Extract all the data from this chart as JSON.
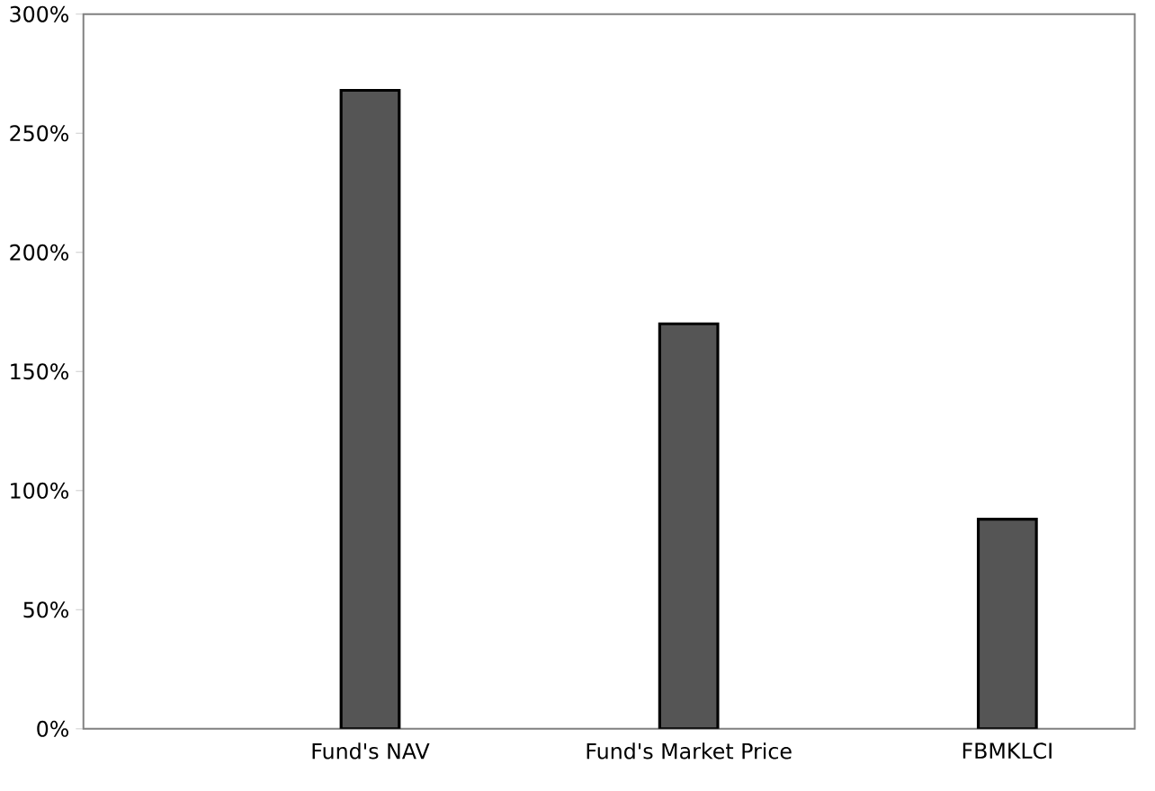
{
  "chart_data": {
    "type": "bar",
    "categories": [
      "Fund's NAV",
      "Fund's Market Price",
      "FBMKLCI"
    ],
    "values": [
      268,
      170,
      88
    ],
    "color": "#555555",
    "ylim": [
      0,
      300
    ],
    "yticks": [
      {
        "value": 0,
        "label": "0%"
      },
      {
        "value": 50,
        "label": "50%"
      },
      {
        "value": 100,
        "label": "100%"
      },
      {
        "value": 150,
        "label": "150%"
      },
      {
        "value": 200,
        "label": "200%"
      },
      {
        "value": 250,
        "label": "250%"
      },
      {
        "value": 300,
        "label": "300%"
      }
    ],
    "grid": false
  }
}
